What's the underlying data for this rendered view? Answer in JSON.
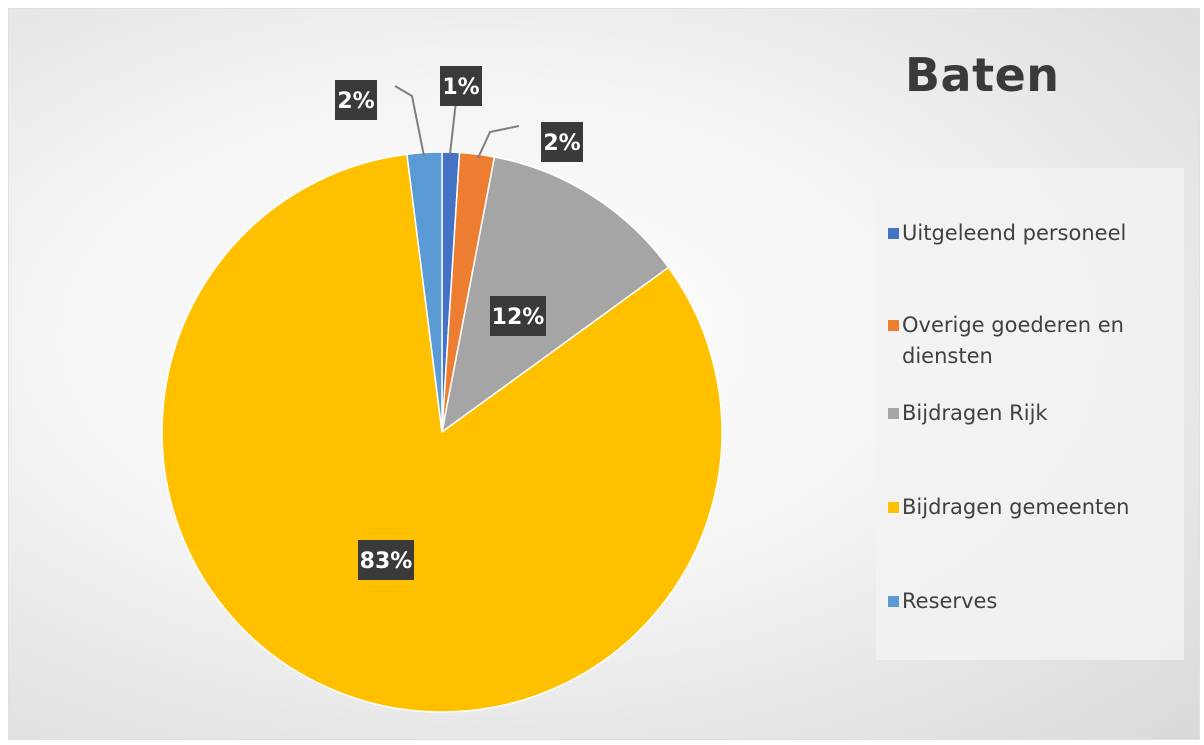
{
  "chart_data": {
    "type": "pie",
    "title": "Baten",
    "categories": [
      "Uitgeleend personeel",
      "Overige goederen en diensten",
      "Bijdragen Rijk",
      "Bijdragen gemeenten",
      "Reserves"
    ],
    "values": [
      1,
      2,
      12,
      83,
      2
    ],
    "labels": [
      "1%",
      "2%",
      "12%",
      "83%",
      "2%"
    ],
    "colors": [
      "#4472C4",
      "#ED7D31",
      "#A5A5A5",
      "#FFC000",
      "#5B9BD5"
    ],
    "legend_position": "right"
  },
  "legend": {
    "items": [
      {
        "label": "Uitgeleend personeel"
      },
      {
        "label": "Overige goederen en diensten"
      },
      {
        "label": "Bijdragen Rijk"
      },
      {
        "label": "Bijdragen gemeenten"
      },
      {
        "label": "Reserves"
      }
    ]
  }
}
